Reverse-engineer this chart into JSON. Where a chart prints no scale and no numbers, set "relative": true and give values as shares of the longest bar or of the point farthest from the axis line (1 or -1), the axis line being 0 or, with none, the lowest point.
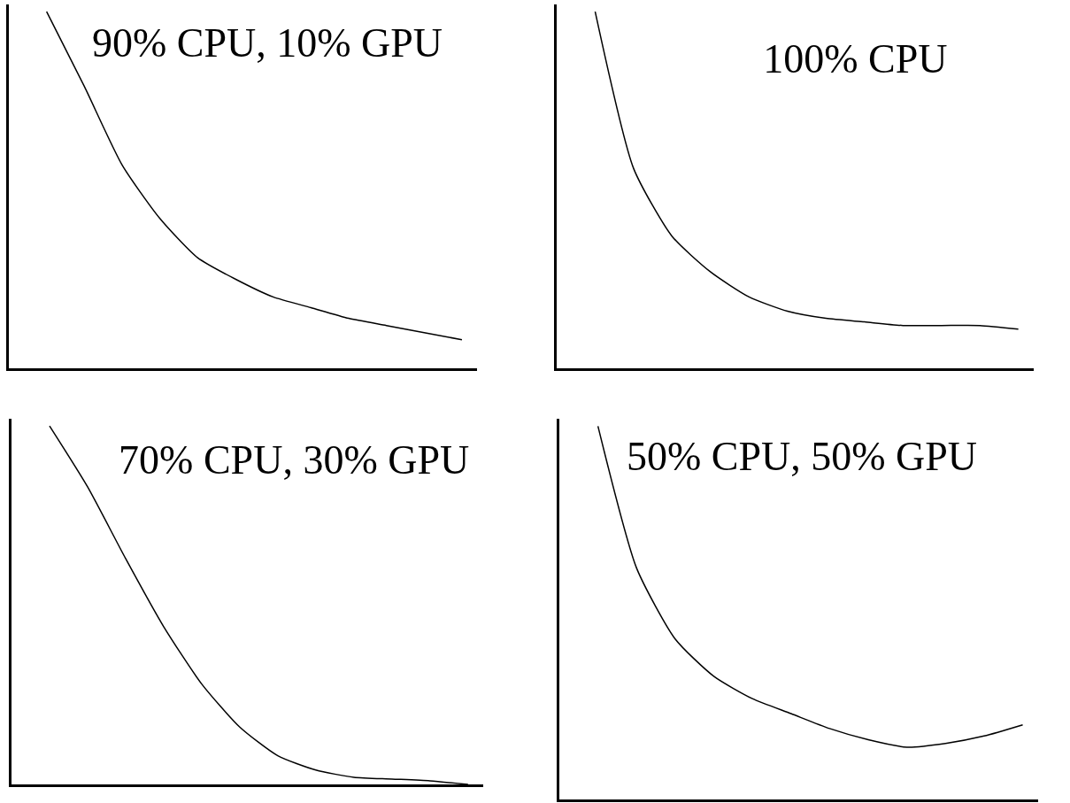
{
  "chart_data": [
    {
      "type": "line",
      "title": "90% CPU, 10% GPU",
      "relative": true,
      "grid": false,
      "categories": [
        null,
        null,
        null,
        null,
        null,
        null,
        null,
        null,
        null,
        null,
        null,
        null
      ],
      "series": [
        {
          "color": "#000000",
          "values": [
            1.0,
            0.79,
            0.57,
            0.42,
            0.31,
            0.25,
            0.2,
            0.17,
            0.14,
            0.12,
            0.1,
            0.08
          ]
        }
      ]
    },
    {
      "type": "line",
      "title": "100% CPU",
      "relative": true,
      "grid": false,
      "categories": [
        null,
        null,
        null,
        null,
        null,
        null,
        null,
        null,
        null,
        null,
        null,
        null
      ],
      "series": [
        {
          "color": "#000000",
          "values": [
            1.0,
            0.56,
            0.37,
            0.27,
            0.2,
            0.16,
            0.14,
            0.13,
            0.12,
            0.12,
            0.12,
            0.11
          ]
        }
      ]
    },
    {
      "type": "line",
      "title": "70% CPU, 30% GPU",
      "relative": true,
      "grid": false,
      "categories": [
        null,
        null,
        null,
        null,
        null,
        null,
        null,
        null,
        null,
        null,
        null,
        null
      ],
      "series": [
        {
          "color": "#000000",
          "values": [
            1.0,
            0.83,
            0.63,
            0.44,
            0.28,
            0.16,
            0.08,
            0.04,
            0.02,
            0.015,
            0.01,
            0.0
          ]
        }
      ]
    },
    {
      "type": "line",
      "title": "50% CPU, 50% GPU",
      "relative": true,
      "grid": false,
      "categories": [
        null,
        null,
        null,
        null,
        null,
        null,
        null,
        null,
        null,
        null,
        null,
        null
      ],
      "series": [
        {
          "color": "#000000",
          "values": [
            1.0,
            0.62,
            0.43,
            0.33,
            0.27,
            0.23,
            0.19,
            0.16,
            0.14,
            0.15,
            0.17,
            0.2
          ]
        }
      ]
    }
  ]
}
